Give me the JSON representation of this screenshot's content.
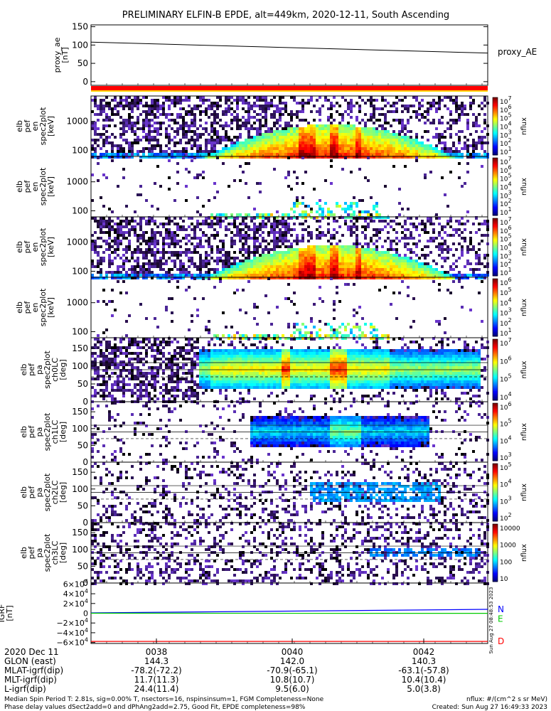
{
  "title": "PRELIMINARY ELFIN-B EPDE, alt=449km, 2020-12-11, South Ascending",
  "colors": {
    "proxy_line": "#000000",
    "bar_red": "#ff0000",
    "bar_yellow": "#ffd700",
    "B_N": "#0000ff",
    "B_E": "#00cc00",
    "B_D": "#ff0000"
  },
  "chart_data": [
    {
      "type": "line",
      "id": "proxy_ae",
      "ylabel": "proxy_ae\n[nT]",
      "legend": "proxy_AE",
      "ylim": [
        -10,
        155
      ],
      "yticks": [
        "150",
        "100",
        "50",
        "0"
      ],
      "x": [
        "00:36:30",
        "00:43:00"
      ],
      "values": [
        108,
        78
      ]
    },
    {
      "type": "heatmap",
      "id": "spec_en_1",
      "ylabel": "elb\npef\nen\nspec2plot\n[keV]",
      "yticks": [
        "1000",
        "100"
      ],
      "yscale": "log",
      "colorbar": {
        "label": "nflux",
        "ticks": [
          "10^7",
          "10^6",
          "10^5",
          "10^4",
          "10^3",
          "10^2",
          "10^1"
        ]
      },
      "density": "high"
    },
    {
      "type": "heatmap",
      "id": "spec_en_2",
      "ylabel": "elb\npef\nen\nspec2plot\n[keV]",
      "yticks": [
        "1000",
        "100"
      ],
      "yscale": "log",
      "colorbar": {
        "label": "nflux",
        "ticks": [
          "10^7",
          "10^6",
          "10^5",
          "10^4",
          "10^3",
          "10^2",
          "10^1"
        ]
      },
      "density": "low"
    },
    {
      "type": "heatmap",
      "id": "spec_en_3",
      "ylabel": "elb\npef\nen\nspec2plot\n[keV]",
      "yticks": [
        "1000",
        "100"
      ],
      "yscale": "log",
      "colorbar": {
        "label": "nflux",
        "ticks": [
          "10^7",
          "10^6",
          "10^5",
          "10^4",
          "10^3",
          "10^2",
          "10^1"
        ]
      },
      "density": "high"
    },
    {
      "type": "heatmap",
      "id": "spec_en_4",
      "ylabel": "elb\npef\nen\nspec2plot\n[keV]",
      "yticks": [
        "1000",
        "100"
      ],
      "yscale": "log",
      "colorbar": {
        "label": "nflux",
        "ticks": [
          "10^6",
          "10^5",
          "10^4",
          "10^3",
          "10^2",
          "10^1"
        ]
      },
      "density": "low"
    },
    {
      "type": "heatmap",
      "id": "pa_ch0",
      "ylabel": "elb\npef\npa\nspec2plot\nch0LC\n[deg]",
      "yticks": [
        "150",
        "100",
        "50",
        "0"
      ],
      "ylim": [
        0,
        180
      ],
      "colorbar": {
        "label": "nflux",
        "ticks": [
          "10^7",
          "10^6",
          "10^5",
          "10^4"
        ]
      }
    },
    {
      "type": "heatmap",
      "id": "pa_ch1",
      "ylabel": "elb\npef\npa\nspec2plot\nch1LC\n[deg]",
      "yticks": [
        "150",
        "100",
        "50",
        "0"
      ],
      "ylim": [
        0,
        180
      ],
      "colorbar": {
        "label": "nflux",
        "ticks": [
          "10^6",
          "10^5",
          "10^4",
          "10^3"
        ]
      }
    },
    {
      "type": "heatmap",
      "id": "pa_ch2",
      "ylabel": "elb\npef\npa\nspec2plot\nch2LC\n[deg]",
      "yticks": [
        "150",
        "100",
        "50",
        "0"
      ],
      "ylim": [
        0,
        180
      ],
      "colorbar": {
        "label": "nflux",
        "ticks": [
          "10^5",
          "10^4",
          "10^3",
          "10^2"
        ]
      }
    },
    {
      "type": "heatmap",
      "id": "pa_ch3",
      "ylabel": "elb\npef\npa\nspec2plot\nch3LC\n[deg]",
      "yticks": [
        "150",
        "100",
        "50",
        "0"
      ],
      "ylim": [
        0,
        180
      ],
      "colorbar": {
        "label": "nflux",
        "ticks": [
          "10000",
          "1000",
          "100",
          "10"
        ]
      }
    },
    {
      "type": "line",
      "id": "igrf",
      "ylabel": "IGRF\n[nT]",
      "yticks": [
        "6×10^4",
        "4×10^4",
        "2×10^4",
        "0",
        "−2×10^4",
        "−4×10^4",
        "−6×10^4"
      ],
      "ylim": [
        -62000,
        62000
      ],
      "series": [
        {
          "name": "N",
          "values": [
            700,
            8000
          ]
        },
        {
          "name": "E",
          "values": [
            0,
            -200
          ]
        },
        {
          "name": "D",
          "values": [
            -57800,
            -57800
          ]
        }
      ],
      "side_note": "Sun Aug 27 08:48:53 2023"
    }
  ],
  "xaxis": {
    "date": "2020 Dec 11",
    "times": [
      "0038",
      "0040",
      "0042"
    ],
    "rows": [
      {
        "label": "GLON (east)",
        "values": [
          "144.3",
          "142.0",
          "140.3"
        ]
      },
      {
        "label": "MLAT-igrf(dip)",
        "values": [
          "-78.2(-72.2)",
          "-70.9(-65.1)",
          "-63.1(-57.8)"
        ]
      },
      {
        "label": "MLT-igrf(dip)",
        "values": [
          "11.7(11.3)",
          "10.8(10.7)",
          "10.4(10.4)"
        ]
      },
      {
        "label": "L-igrf(dip)",
        "values": [
          "24.4(11.4)",
          "9.5(6.0)",
          "5.0(3.8)"
        ]
      }
    ]
  },
  "footer": {
    "line1": "Median Spin Period T: 2.81s, sig=0.00% T, nsectors=16, nspinsinsum=1, FGM Completeness=None",
    "line2": "Phase delay values dSect2add=0 and dPhAng2add=2.75, Good Fit, EPDE completeness=98%",
    "right1": "nflux: #/(cm^2 s sr MeV)",
    "right2": "Created: Sun Aug 27 16:49:33 2023"
  }
}
